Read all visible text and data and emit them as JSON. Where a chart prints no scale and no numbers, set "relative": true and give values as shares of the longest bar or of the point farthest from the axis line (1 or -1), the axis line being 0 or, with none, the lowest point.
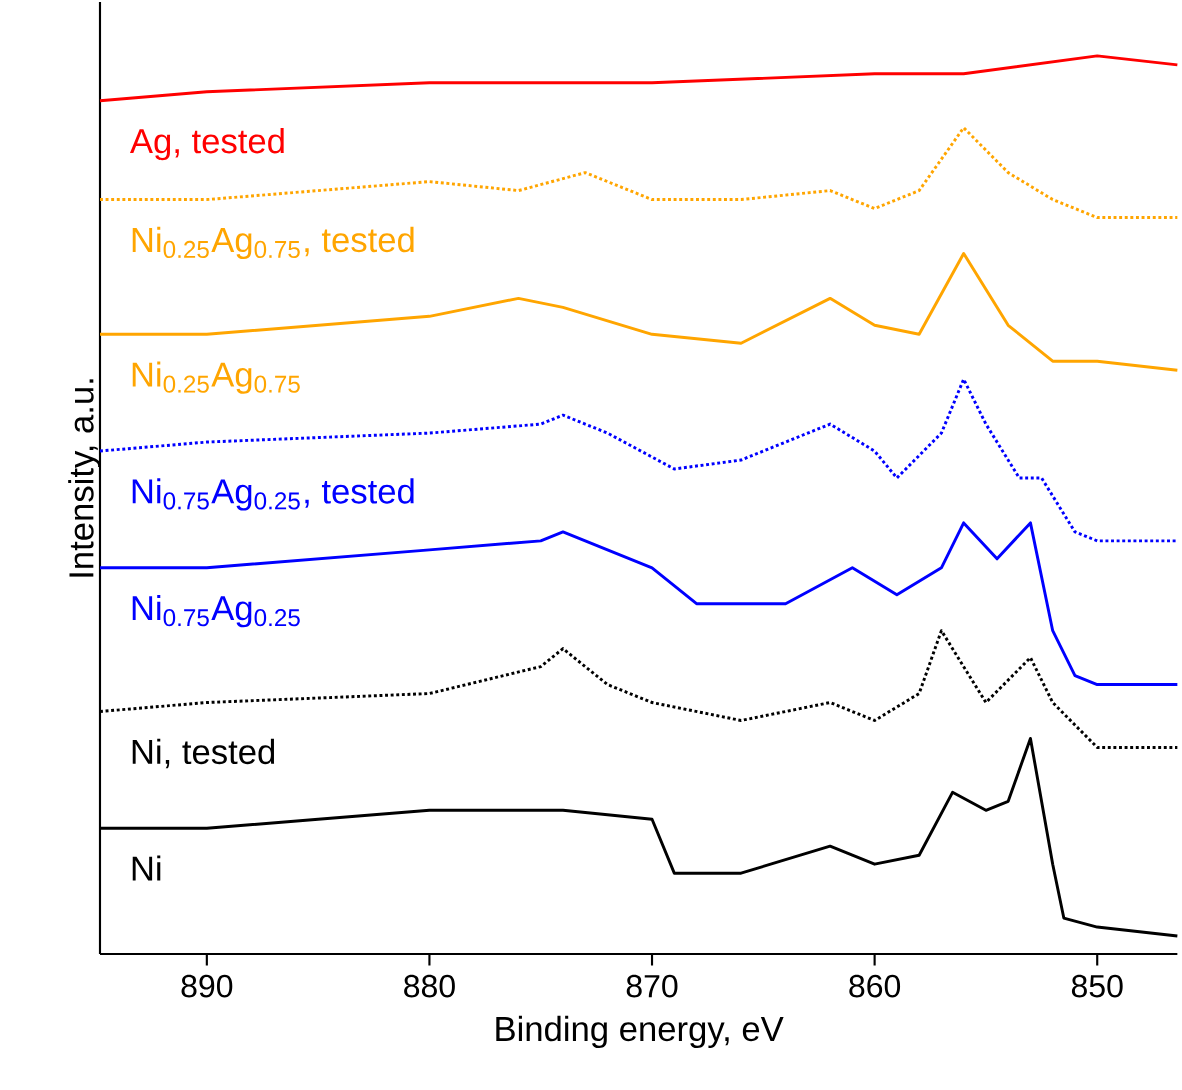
{
  "chart_data": {
    "type": "line",
    "relative": true,
    "xlabel": "Binding energy, eV",
    "ylabel": "Intensity, a.u.",
    "xlim": [
      894.8,
      846.4
    ],
    "xticks": [
      890,
      880,
      870,
      860,
      850
    ],
    "tick_labels": "x",
    "series": [
      {
        "name": "Ni",
        "color": "#000000",
        "line_style": "solid",
        "x": [
          894.8,
          890,
          885,
          880,
          875,
          874,
          870,
          869,
          866,
          862,
          860,
          858,
          856.5,
          855,
          854,
          853,
          852,
          851.5,
          850,
          846.4
        ],
        "values": [
          0.14,
          0.14,
          0.15,
          0.16,
          0.16,
          0.16,
          0.15,
          0.09,
          0.09,
          0.12,
          0.1,
          0.11,
          0.18,
          0.16,
          0.17,
          0.24,
          0.1,
          0.04,
          0.03,
          0.02
        ]
      },
      {
        "name": "Ni, tested",
        "color": "#000000",
        "line_style": "dotted",
        "x": [
          894.8,
          890,
          880,
          875,
          874,
          872,
          870,
          866,
          862,
          860,
          858,
          857,
          855,
          853,
          852,
          850,
          846.4
        ],
        "values": [
          0.27,
          0.28,
          0.29,
          0.32,
          0.34,
          0.3,
          0.28,
          0.26,
          0.28,
          0.26,
          0.29,
          0.36,
          0.28,
          0.33,
          0.28,
          0.23,
          0.23
        ]
      },
      {
        "name": "Ni$_{0.75}$Ag$_{0.25}$",
        "color": "#0000ff",
        "line_style": "solid",
        "x": [
          894.8,
          890,
          880,
          875,
          874,
          870,
          868,
          864,
          861,
          859,
          857,
          856,
          854.5,
          853,
          852,
          851,
          850,
          846.4
        ],
        "values": [
          0.43,
          0.43,
          0.45,
          0.46,
          0.47,
          0.43,
          0.39,
          0.39,
          0.43,
          0.4,
          0.43,
          0.48,
          0.44,
          0.48,
          0.36,
          0.31,
          0.3,
          0.3
        ]
      },
      {
        "name": "Ni$_{0.75}$Ag$_{0.25}$, tested",
        "color": "#0000ff",
        "line_style": "dotted",
        "x": [
          894.8,
          890,
          880,
          875,
          874,
          872,
          869,
          866,
          862,
          860,
          859,
          857,
          856,
          855,
          853.5,
          852.5,
          851,
          850,
          846.4
        ],
        "values": [
          0.56,
          0.57,
          0.58,
          0.59,
          0.6,
          0.58,
          0.54,
          0.55,
          0.59,
          0.56,
          0.53,
          0.58,
          0.64,
          0.59,
          0.53,
          0.53,
          0.47,
          0.46,
          0.46
        ]
      },
      {
        "name": "Ni$_{0.25}$Ag$_{0.75}$",
        "color": "#ffa500",
        "line_style": "solid",
        "x": [
          894.8,
          890,
          880,
          876,
          874,
          870,
          866,
          862,
          860,
          858,
          856,
          854,
          852,
          850,
          846.4
        ],
        "values": [
          0.69,
          0.69,
          0.71,
          0.73,
          0.72,
          0.69,
          0.68,
          0.73,
          0.7,
          0.69,
          0.78,
          0.7,
          0.66,
          0.66,
          0.65
        ]
      },
      {
        "name": "Ni$_{0.25}$Ag$_{0.75}$, tested",
        "color": "#ffa500",
        "line_style": "dotted",
        "x": [
          894.8,
          890,
          880,
          876,
          873,
          870,
          866,
          862,
          860,
          858,
          856,
          854,
          852,
          850,
          846.4
        ],
        "values": [
          0.84,
          0.84,
          0.86,
          0.85,
          0.87,
          0.84,
          0.84,
          0.85,
          0.83,
          0.85,
          0.92,
          0.87,
          0.84,
          0.82,
          0.82
        ]
      },
      {
        "name": "Ag, tested",
        "color": "#ff0000",
        "line_style": "solid",
        "x": [
          894.8,
          890,
          880,
          870,
          860,
          856,
          850,
          846.4
        ],
        "values": [
          0.95,
          0.96,
          0.97,
          0.97,
          0.98,
          0.98,
          1.0,
          0.99
        ]
      }
    ]
  }
}
